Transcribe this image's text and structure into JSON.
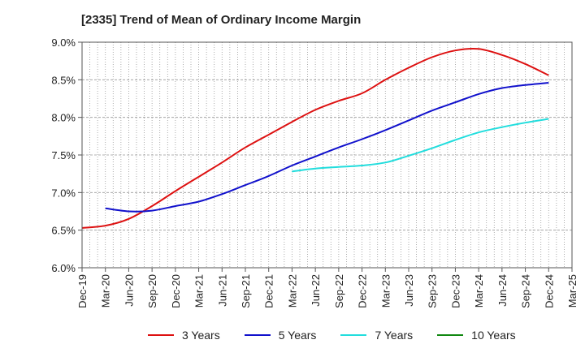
{
  "chart_data": {
    "type": "line",
    "title": "[2335]  Trend of Mean of Ordinary Income Margin",
    "xlabel": "",
    "ylabel": "",
    "x_ticks": [
      "Dec-19",
      "Mar-20",
      "Jun-20",
      "Sep-20",
      "Dec-20",
      "Mar-21",
      "Jun-21",
      "Sep-21",
      "Dec-21",
      "Mar-22",
      "Jun-22",
      "Sep-22",
      "Dec-22",
      "Mar-23",
      "Jun-23",
      "Sep-23",
      "Dec-23",
      "Mar-24",
      "Jun-24",
      "Sep-24",
      "Dec-24",
      "Mar-25"
    ],
    "y_ticks": [
      "6.0%",
      "6.5%",
      "7.0%",
      "7.5%",
      "8.0%",
      "8.5%",
      "9.0%"
    ],
    "ylim": [
      6.0,
      9.0
    ],
    "grid": true,
    "legend_position": "bottom",
    "series": [
      {
        "name": "3 Years",
        "color": "#dd1111",
        "x": [
          "Dec-19",
          "Mar-20",
          "Jun-20",
          "Sep-20",
          "Dec-20",
          "Mar-21",
          "Jun-21",
          "Sep-21",
          "Dec-21",
          "Mar-22",
          "Jun-22",
          "Sep-22",
          "Dec-22",
          "Mar-23",
          "Jun-23",
          "Sep-23",
          "Dec-23",
          "Mar-24",
          "Jun-24",
          "Sep-24",
          "Dec-24"
        ],
        "values": [
          6.53,
          6.56,
          6.65,
          6.82,
          7.02,
          7.21,
          7.4,
          7.6,
          7.77,
          7.94,
          8.1,
          8.22,
          8.32,
          8.5,
          8.66,
          8.8,
          8.89,
          8.91,
          8.83,
          8.71,
          8.56
        ]
      },
      {
        "name": "5 Years",
        "color": "#1111cc",
        "x": [
          "Mar-20",
          "Jun-20",
          "Sep-20",
          "Dec-20",
          "Mar-21",
          "Jun-21",
          "Sep-21",
          "Dec-21",
          "Mar-22",
          "Jun-22",
          "Sep-22",
          "Dec-22",
          "Mar-23",
          "Jun-23",
          "Sep-23",
          "Dec-23",
          "Mar-24",
          "Jun-24",
          "Sep-24",
          "Dec-24"
        ],
        "values": [
          6.79,
          6.75,
          6.76,
          6.82,
          6.88,
          6.98,
          7.1,
          7.22,
          7.36,
          7.48,
          7.6,
          7.71,
          7.83,
          7.96,
          8.09,
          8.2,
          8.31,
          8.39,
          8.43,
          8.46
        ]
      },
      {
        "name": "7 Years",
        "color": "#22dddd",
        "x": [
          "Mar-22",
          "Jun-22",
          "Sep-22",
          "Dec-22",
          "Mar-23",
          "Jun-23",
          "Sep-23",
          "Dec-23",
          "Mar-24",
          "Jun-24",
          "Sep-24",
          "Dec-24"
        ],
        "values": [
          7.28,
          7.32,
          7.34,
          7.36,
          7.4,
          7.49,
          7.59,
          7.7,
          7.8,
          7.87,
          7.93,
          7.98
        ]
      },
      {
        "name": "10 Years",
        "color": "#118811",
        "x": [],
        "values": []
      }
    ]
  }
}
